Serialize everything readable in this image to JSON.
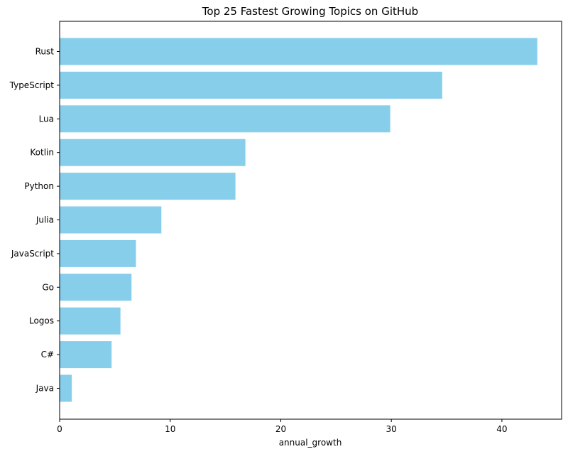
{
  "chart_data": {
    "type": "bar",
    "orientation": "horizontal",
    "title": "Top 25 Fastest Growing Topics on GitHub",
    "xlabel": "annual_growth",
    "ylabel": "",
    "categories": [
      "Rust",
      "TypeScript",
      "Lua",
      "Kotlin",
      "Python",
      "Julia",
      "JavaScript",
      "Go",
      "Logos",
      "C#",
      "Java"
    ],
    "values": [
      43.2,
      34.6,
      29.9,
      16.8,
      15.9,
      9.2,
      6.9,
      6.5,
      5.5,
      4.7,
      1.1
    ],
    "xlim": [
      0,
      45.4
    ],
    "xticks": [
      0,
      10,
      20,
      30,
      40
    ],
    "xtick_labels": [
      "0",
      "10",
      "20",
      "30",
      "40"
    ],
    "bar_color": "#87ceeb",
    "grid": false,
    "legend": "none"
  }
}
